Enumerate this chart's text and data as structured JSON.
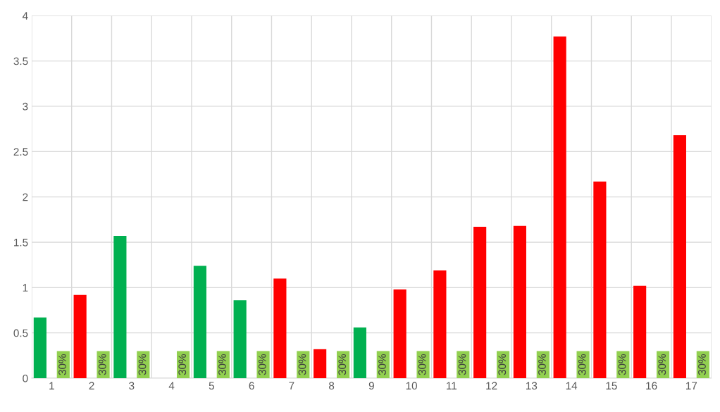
{
  "chart_data": {
    "type": "bar",
    "categories": [
      "1",
      "2",
      "3",
      "4",
      "5",
      "6",
      "7",
      "8",
      "9",
      "10",
      "11",
      "12",
      "13",
      "14",
      "15",
      "16",
      "17"
    ],
    "series": [
      {
        "colors": [
          "#00b050",
          "#ff0000",
          "#00b050",
          "#00b050",
          "#00b050",
          "#00b050",
          "#ff0000",
          "#ff0000",
          "#00b050",
          "#ff0000",
          "#ff0000",
          "#ff0000",
          "#ff0000",
          "#ff0000",
          "#ff0000",
          "#ff0000",
          "#ff0000"
        ],
        "values": [
          0.67,
          0.92,
          1.57,
          null,
          1.24,
          0.86,
          1.1,
          0.32,
          0.56,
          0.98,
          1.19,
          1.67,
          1.68,
          3.77,
          2.17,
          1.02,
          2.68
        ]
      },
      {
        "color": "#92d050",
        "values": [
          0.3,
          0.3,
          0.3,
          0.3,
          0.3,
          0.3,
          0.3,
          0.3,
          0.3,
          0.3,
          0.3,
          0.3,
          0.3,
          0.3,
          0.3,
          0.3,
          0.3
        ],
        "value_labels": [
          "30%",
          "30%",
          "30%",
          "30%",
          "30%",
          "30%",
          "30%",
          "30%",
          "30%",
          "30%",
          "30%",
          "30%",
          "30%",
          "30%",
          "30%",
          "30%",
          "30%"
        ]
      }
    ],
    "ylim": [
      0,
      4
    ],
    "yticks": [
      0,
      0.5,
      1,
      1.5,
      2,
      2.5,
      3,
      3.5,
      4
    ],
    "grid": true,
    "legend": false
  }
}
